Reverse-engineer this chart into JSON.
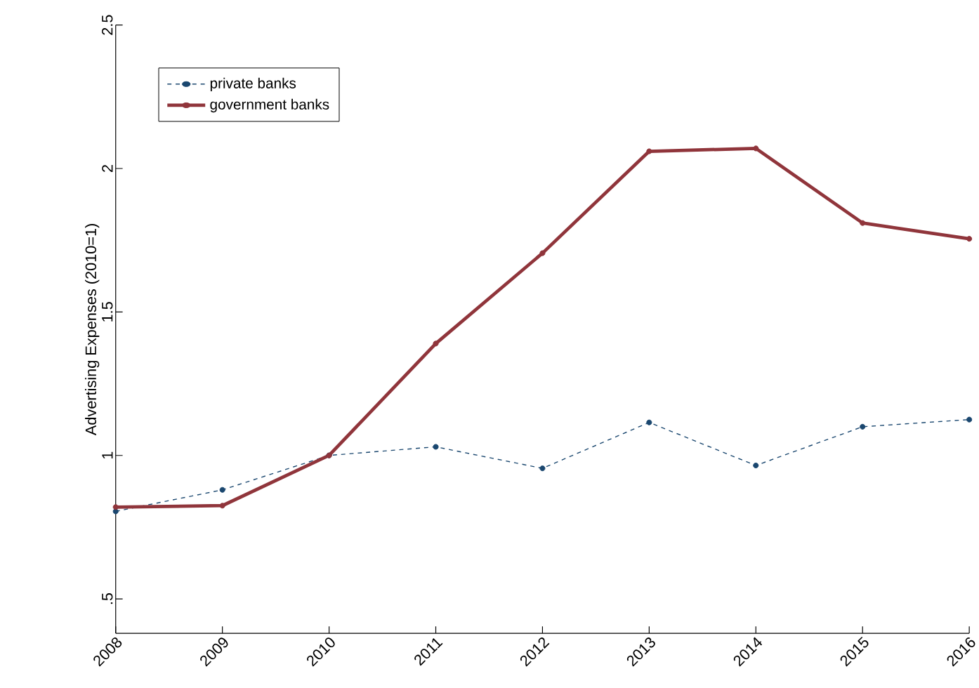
{
  "chart_data": {
    "type": "line",
    "ylabel": "Advertising Expenses (2010=1)",
    "x": [
      2008,
      2009,
      2010,
      2011,
      2012,
      2013,
      2014,
      2015,
      2016
    ],
    "series": [
      {
        "name": "private banks",
        "color": "#1a476f",
        "line_style": "dashed",
        "values": [
          0.805,
          0.88,
          1.0,
          1.03,
          0.955,
          1.115,
          0.965,
          1.1,
          1.125
        ]
      },
      {
        "name": "government banks",
        "color": "#90353b",
        "line_style": "solid",
        "values": [
          0.82,
          0.825,
          1.0,
          1.39,
          1.705,
          2.06,
          2.07,
          1.81,
          1.755
        ]
      }
    ],
    "xlim": [
      2008,
      2016
    ],
    "xticks": [
      2008,
      2009,
      2010,
      2011,
      2012,
      2013,
      2014,
      2015,
      2016
    ],
    "ylim": [
      0.38,
      2.5
    ],
    "yticks": [
      {
        "value": 0.5,
        "label": ".5"
      },
      1,
      1.5,
      2,
      2.5
    ],
    "marker": "circle",
    "grid": false,
    "legend": "top left"
  }
}
